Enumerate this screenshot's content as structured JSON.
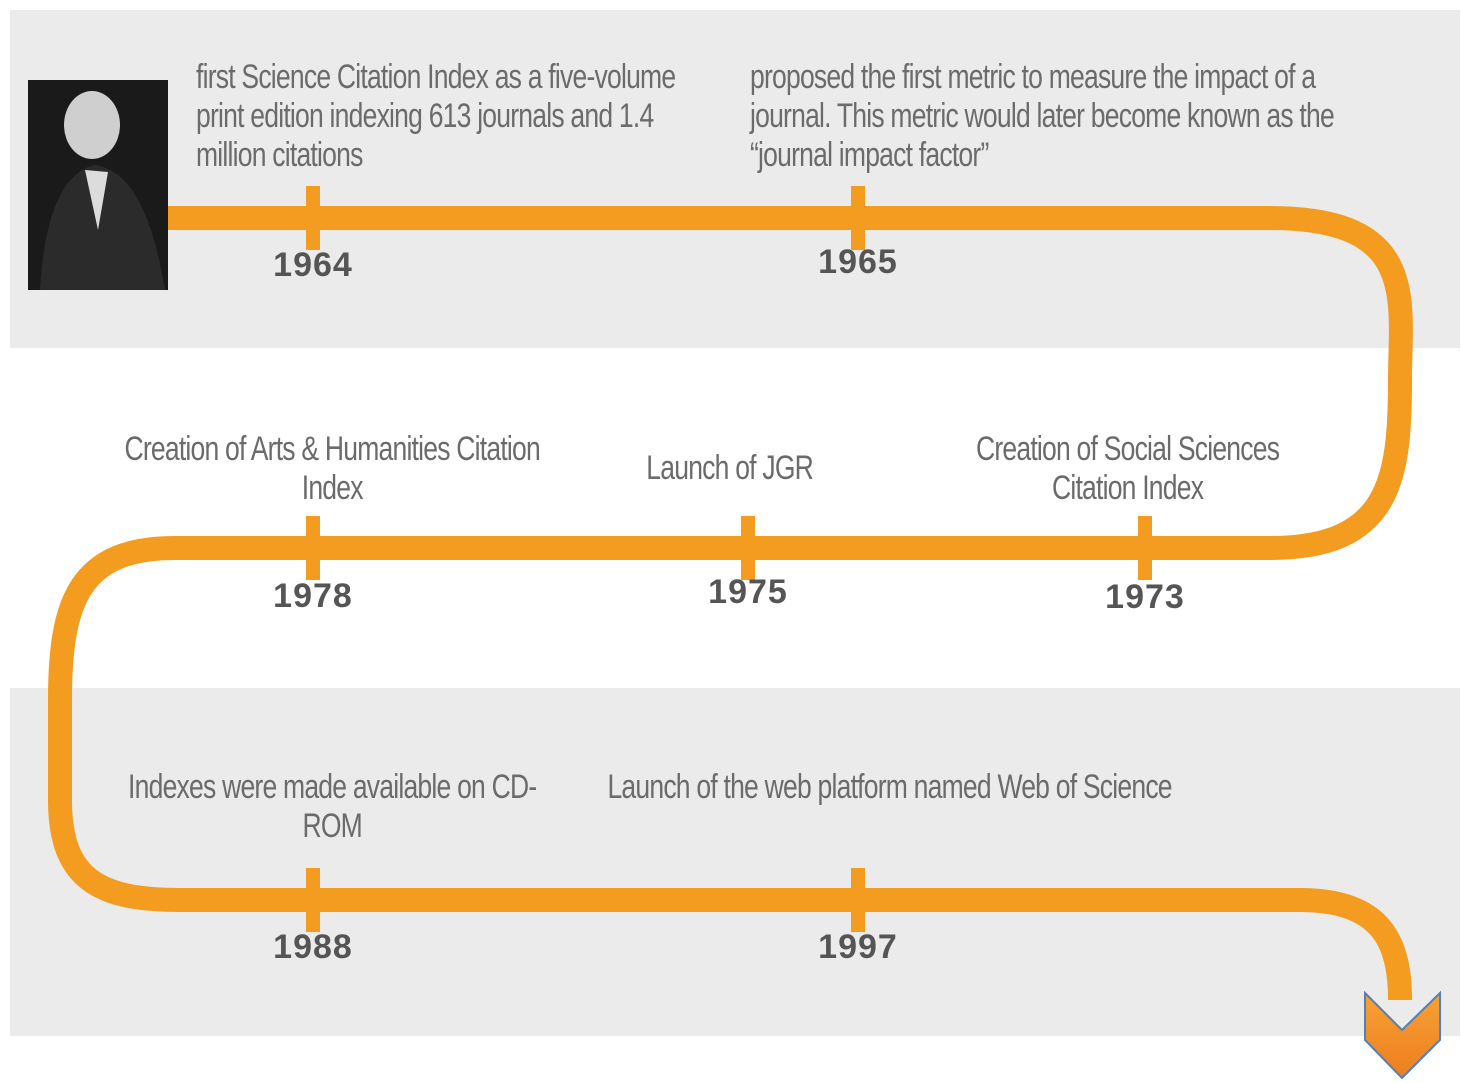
{
  "timeline": {
    "events": [
      {
        "year": 1964,
        "text": "first Science Citation Index as a five-volume print edition indexing 613 journals and 1.4 million citations"
      },
      {
        "year": 1965,
        "text": "proposed the first metric to measure the impact of a journal. This metric would later become known as the “journal impact factor”"
      },
      {
        "year": 1973,
        "text": "Creation of Social Sciences Citation Index"
      },
      {
        "year": 1975,
        "text": "Launch of JGR"
      },
      {
        "year": 1978,
        "text": "Creation of Arts & Humanities Citation Index"
      },
      {
        "year": 1988,
        "text": "Indexes were made available on CD-ROM"
      },
      {
        "year": 1997,
        "text": "Launch of the web platform named Web of Science"
      }
    ]
  }
}
